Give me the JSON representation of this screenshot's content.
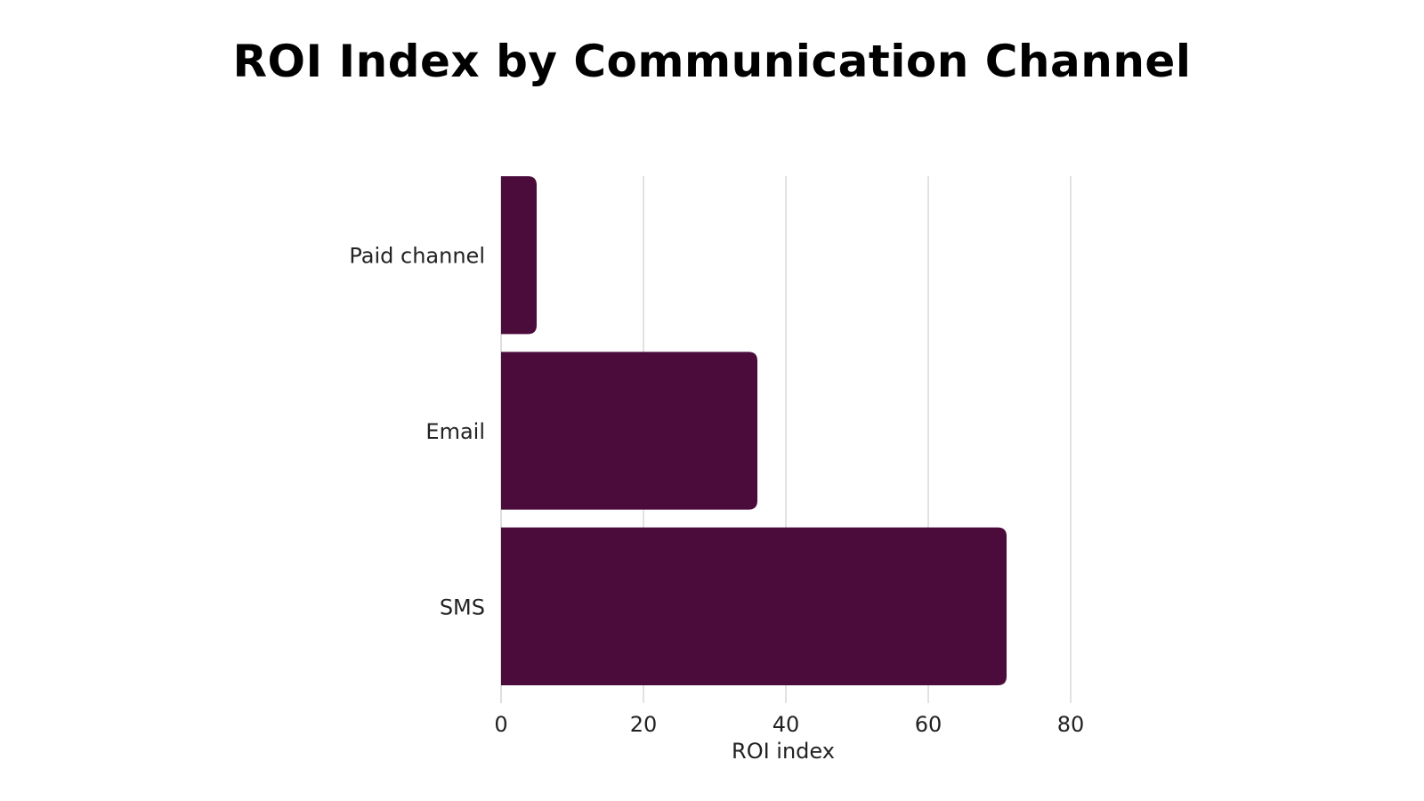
{
  "chart_data": {
    "type": "bar",
    "orientation": "horizontal",
    "title": "ROI Index by Communication Channel",
    "xlabel": "ROI index",
    "ylabel": "",
    "categories": [
      "Paid channel",
      "Email",
      "SMS"
    ],
    "values": [
      5,
      36,
      71
    ],
    "xlim": [
      0,
      80
    ],
    "xticks": [
      "0",
      "20",
      "40",
      "60",
      "80"
    ],
    "grid": true,
    "legend": "none",
    "bar_color": "#4B0B3B",
    "grid_color": "#D9D9D9"
  }
}
